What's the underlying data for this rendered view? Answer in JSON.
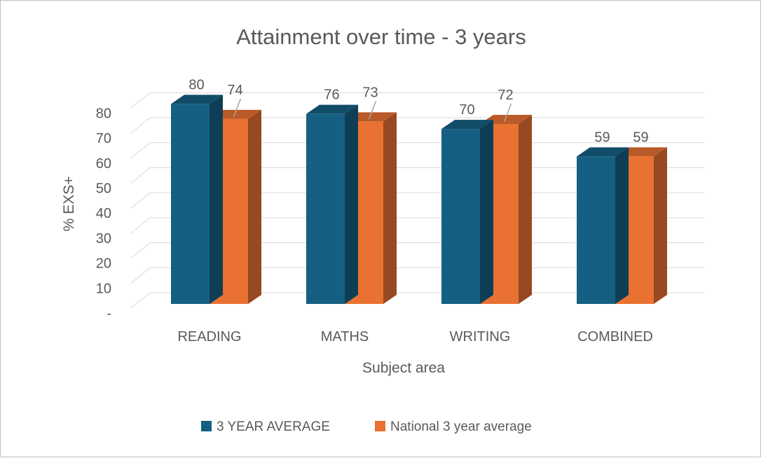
{
  "chart_data": {
    "type": "bar",
    "title": "Attainment over time - 3 years",
    "xlabel": "Subject area",
    "ylabel": "% EXS+",
    "categories": [
      "READING",
      "MATHS",
      "WRITING",
      "COMBINED"
    ],
    "series": [
      {
        "name": "3 YEAR AVERAGE",
        "values": [
          80,
          76,
          70,
          59
        ],
        "color": "#156082"
      },
      {
        "name": "National 3 year average",
        "values": [
          74,
          73,
          72,
          59
        ],
        "color": "#E97132"
      }
    ],
    "ylim": [
      0,
      80
    ],
    "yticks": [
      0,
      10,
      20,
      30,
      40,
      50,
      60,
      70,
      80
    ],
    "ytick_labels": [
      "-",
      "10",
      "20",
      "30",
      "40",
      "50",
      "60",
      "70",
      "80"
    ],
    "grid": true,
    "legend": "bottom",
    "style": "3d-clustered-column"
  }
}
